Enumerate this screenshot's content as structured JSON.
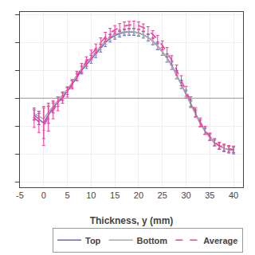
{
  "chart_data": {
    "type": "line",
    "title": "",
    "xlabel": "Thickness, y (mm)",
    "x": [
      -2,
      -1,
      0,
      1,
      2,
      3,
      4,
      5,
      6,
      7,
      8,
      9,
      10,
      11,
      12,
      13,
      14,
      15,
      16,
      17,
      18,
      19,
      20,
      21,
      22,
      23,
      24,
      25,
      26,
      27,
      28,
      29,
      30,
      31,
      32,
      33,
      34,
      35,
      36,
      37,
      38,
      39,
      40
    ],
    "series": [
      {
        "name": "Top",
        "color": "#6666cc",
        "line_style": "solid",
        "values": [
          -60,
          -75,
          -90,
          -60,
          -35,
          -15,
          5,
          25,
          50,
          75,
          100,
          120,
          140,
          160,
          180,
          200,
          215,
          225,
          232,
          237,
          238,
          238,
          235,
          228,
          218,
          205,
          188,
          168,
          145,
          118,
          85,
          50,
          15,
          -20,
          -55,
          -90,
          -118,
          -140,
          -160,
          -172,
          -180,
          -185,
          -188
        ],
        "error": [
          18,
          20,
          55,
          30,
          18,
          15,
          13,
          12,
          12,
          12,
          13,
          13,
          14,
          14,
          14,
          14,
          13,
          13,
          12,
          12,
          12,
          12,
          12,
          12,
          13,
          13,
          14,
          14,
          15,
          15,
          15,
          15,
          14,
          13,
          13,
          13,
          12,
          12,
          12,
          12,
          12,
          12,
          12
        ]
      },
      {
        "name": "Bottom",
        "color": "#aaaaaa",
        "line_style": "solid",
        "values": [
          -55,
          -65,
          -75,
          -50,
          -28,
          -8,
          12,
          32,
          57,
          82,
          107,
          127,
          147,
          167,
          187,
          206,
          220,
          229,
          235,
          239,
          240,
          239,
          235,
          228,
          218,
          205,
          188,
          167,
          143,
          116,
          83,
          48,
          12,
          -23,
          -58,
          -93,
          -120,
          -142,
          -162,
          -172,
          -180,
          -184,
          -186
        ],
        "error": [
          15,
          16,
          40,
          25,
          15,
          13,
          11,
          10,
          10,
          10,
          11,
          11,
          12,
          12,
          12,
          12,
          11,
          11,
          10,
          10,
          10,
          10,
          10,
          10,
          11,
          11,
          12,
          12,
          13,
          13,
          13,
          13,
          12,
          11,
          11,
          11,
          10,
          10,
          10,
          10,
          10,
          10,
          10
        ]
      },
      {
        "name": "Average",
        "color": "#ff3399",
        "line_style": "dashed",
        "values": [
          -70,
          -85,
          -100,
          -68,
          -42,
          -20,
          2,
          22,
          50,
          80,
          108,
          132,
          156,
          178,
          200,
          220,
          235,
          246,
          254,
          260,
          263,
          264,
          261,
          254,
          243,
          229,
          211,
          190,
          165,
          136,
          101,
          63,
          25,
          -12,
          -50,
          -86,
          -115,
          -138,
          -158,
          -170,
          -177,
          -182,
          -184
        ],
        "error": [
          35,
          38,
          70,
          50,
          32,
          25,
          20,
          18,
          17,
          17,
          17,
          17,
          17,
          17,
          17,
          17,
          16,
          15,
          14,
          14,
          13,
          13,
          13,
          13,
          14,
          14,
          15,
          16,
          17,
          17,
          18,
          18,
          18,
          17,
          16,
          15,
          14,
          13,
          13,
          12,
          12,
          12,
          12
        ]
      }
    ],
    "xlim": [
      -5,
      42
    ],
    "xticks": [
      -5,
      0,
      5,
      10,
      15,
      20,
      25,
      30,
      35,
      40
    ],
    "ylim": [
      -320,
      310
    ],
    "yticks": [
      -300,
      -200,
      -100,
      0,
      100,
      200,
      300
    ],
    "hline": {
      "value": 0,
      "color": "#999999"
    },
    "tick_labels": "x",
    "grid": true,
    "legend": "lower right"
  }
}
